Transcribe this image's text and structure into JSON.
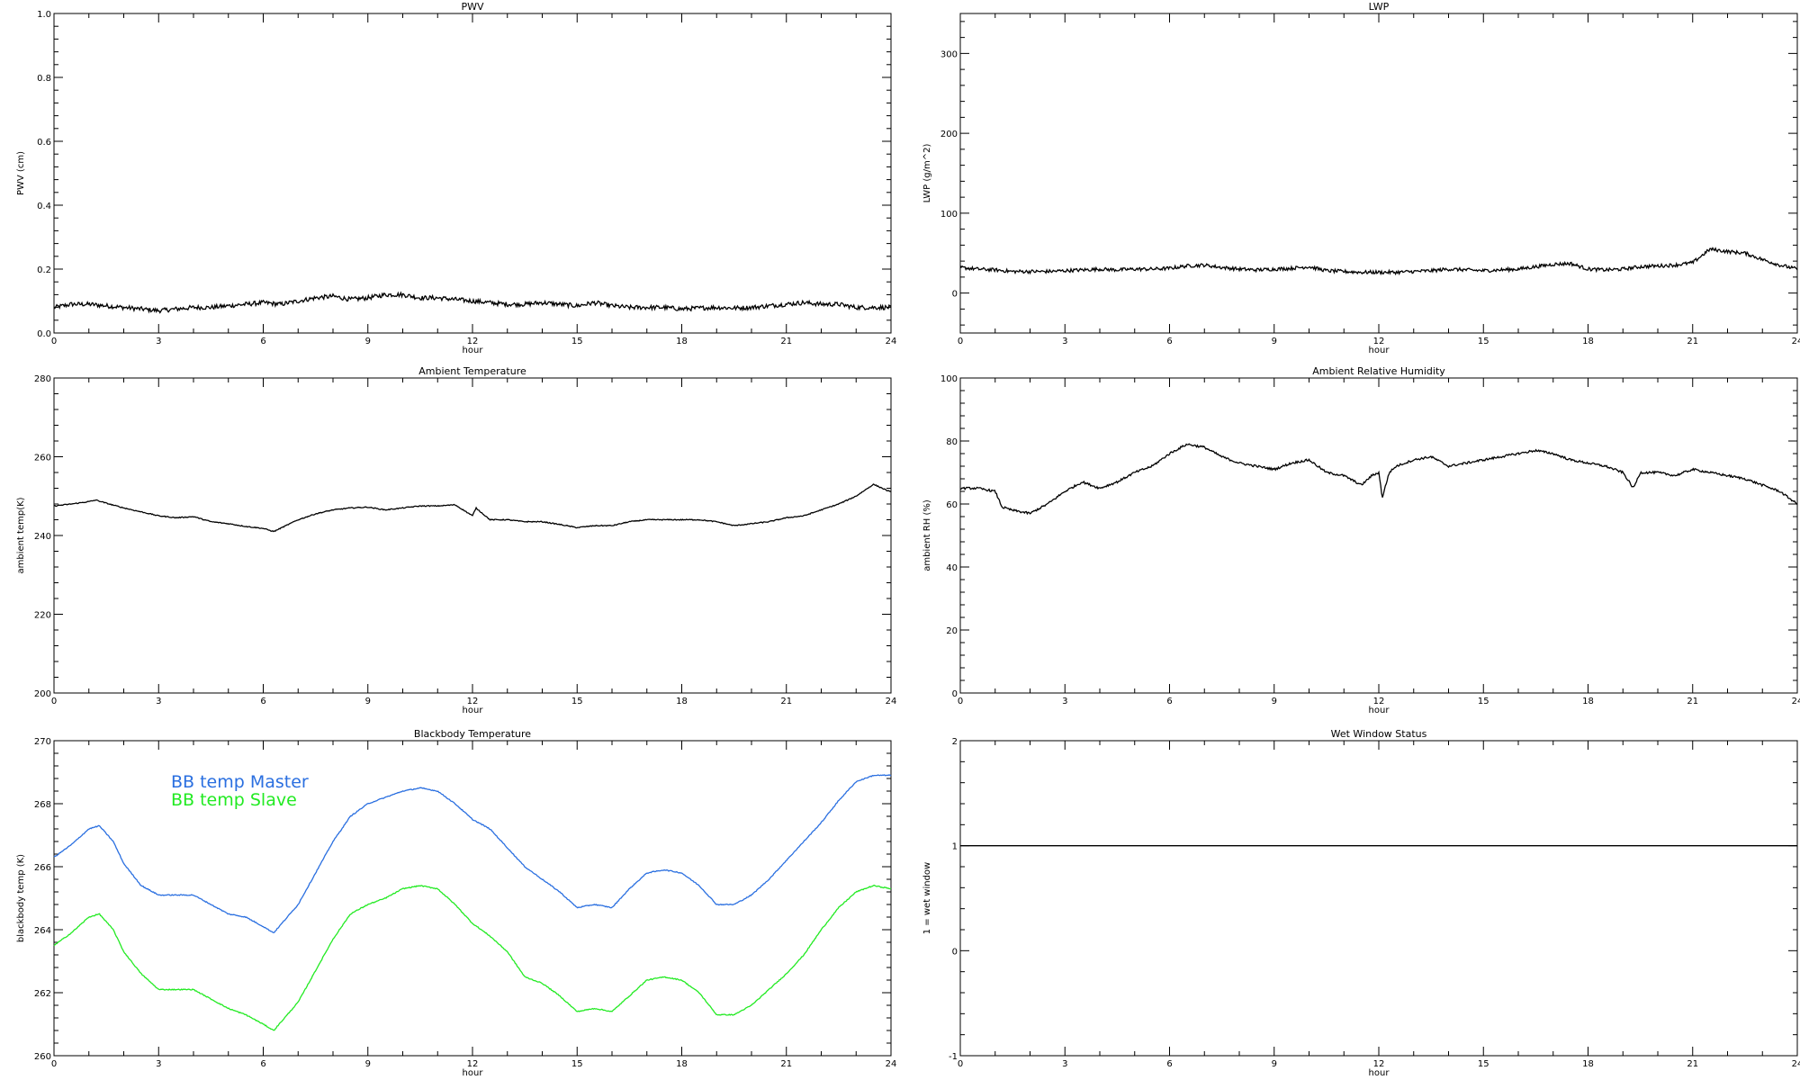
{
  "chart_data": [
    {
      "id": "pwv",
      "type": "line",
      "title": "PWV",
      "xlabel": "hour",
      "ylabel": "PWV (cm)",
      "xlim": [
        0,
        24
      ],
      "ylim": [
        0,
        1.0
      ],
      "xticks": [
        0,
        3,
        6,
        9,
        12,
        15,
        18,
        21,
        24
      ],
      "yticks": [
        0.0,
        0.2,
        0.4,
        0.6,
        0.8,
        1.0
      ],
      "ytick_labels": [
        "0.0",
        "0.2",
        "0.4",
        "0.6",
        "0.8",
        "1.0"
      ],
      "series": [
        {
          "color": "#000000",
          "noise": 0.007,
          "x": [
            0,
            0.5,
            1,
            1.5,
            2,
            2.5,
            3,
            3.5,
            4,
            4.5,
            5,
            5.5,
            6,
            6.5,
            7,
            7.5,
            8,
            8.5,
            9,
            9.5,
            10,
            10.5,
            11,
            11.5,
            12,
            12.5,
            13,
            13.5,
            14,
            14.5,
            15,
            15.5,
            16,
            16.5,
            17,
            17.5,
            18,
            18.5,
            19,
            19.5,
            20,
            20.5,
            21,
            21.5,
            22,
            22.5,
            23,
            23.5,
            24
          ],
          "y": [
            0.08,
            0.09,
            0.09,
            0.085,
            0.08,
            0.075,
            0.07,
            0.075,
            0.08,
            0.08,
            0.085,
            0.09,
            0.095,
            0.09,
            0.1,
            0.11,
            0.115,
            0.105,
            0.11,
            0.12,
            0.12,
            0.11,
            0.11,
            0.105,
            0.1,
            0.095,
            0.09,
            0.09,
            0.095,
            0.09,
            0.085,
            0.095,
            0.085,
            0.08,
            0.08,
            0.08,
            0.075,
            0.078,
            0.08,
            0.078,
            0.08,
            0.085,
            0.09,
            0.095,
            0.09,
            0.09,
            0.08,
            0.08,
            0.08
          ]
        }
      ]
    },
    {
      "id": "lwp",
      "type": "line",
      "title": "LWP",
      "xlabel": "hour",
      "ylabel": "LWP (g/m^2)",
      "xlim": [
        0,
        24
      ],
      "ylim": [
        -50,
        350
      ],
      "xticks": [
        0,
        3,
        6,
        9,
        12,
        15,
        18,
        21,
        24
      ],
      "yticks": [
        0,
        100,
        200,
        300
      ],
      "ytick_labels": [
        "0",
        "100",
        "200",
        "300"
      ],
      "series": [
        {
          "color": "#000000",
          "noise": 2.2,
          "x": [
            0,
            0.5,
            1,
            1.5,
            2,
            2.5,
            3,
            3.5,
            4,
            4.5,
            5,
            5.5,
            6,
            6.5,
            7,
            7.5,
            8,
            8.5,
            9,
            9.5,
            10,
            10.5,
            11,
            11.5,
            12,
            12.5,
            13,
            13.5,
            14,
            14.5,
            15,
            15.5,
            16,
            16.5,
            17,
            17.5,
            18,
            18.5,
            19,
            19.5,
            20,
            20.5,
            21,
            21.5,
            22,
            22.5,
            23,
            23.5,
            24
          ],
          "y": [
            32,
            30,
            29,
            27,
            27,
            27,
            28,
            29,
            30,
            29,
            30,
            30,
            31,
            34,
            35,
            32,
            30,
            29,
            30,
            31,
            33,
            28,
            27,
            26,
            26,
            26,
            27,
            28,
            30,
            29,
            28,
            29,
            30,
            33,
            36,
            37,
            30,
            29,
            30,
            33,
            34,
            35,
            38,
            55,
            52,
            50,
            42,
            35,
            30
          ]
        }
      ]
    },
    {
      "id": "ambient-temp",
      "type": "line",
      "title": "Ambient Temperature",
      "xlabel": "hour",
      "ylabel": "ambient temp(K)",
      "xlim": [
        0,
        24
      ],
      "ylim": [
        200,
        280
      ],
      "xticks": [
        0,
        3,
        6,
        9,
        12,
        15,
        18,
        21,
        24
      ],
      "yticks": [
        200,
        220,
        240,
        260,
        280
      ],
      "ytick_labels": [
        "200",
        "220",
        "240",
        "260",
        "280"
      ],
      "series": [
        {
          "color": "#000000",
          "noise": 0.12,
          "x": [
            0,
            0.5,
            1,
            1.2,
            1.5,
            2,
            2.5,
            3,
            3.5,
            4,
            4.5,
            5,
            5.5,
            6,
            6.3,
            7,
            7.5,
            8,
            8.5,
            9,
            9.5,
            10,
            10.5,
            11,
            11.5,
            12,
            12.1,
            12.5,
            13,
            13.5,
            14,
            14.5,
            15,
            15.5,
            16,
            16.5,
            17,
            17.5,
            18,
            18.5,
            19,
            19.5,
            20,
            20.5,
            21,
            21.5,
            22,
            22.5,
            23,
            23.5,
            24
          ],
          "y": [
            247.5,
            248,
            248.6,
            249,
            248.2,
            247,
            246,
            245,
            244.5,
            244.8,
            243.5,
            243,
            242.3,
            241.8,
            241,
            244,
            245.5,
            246.5,
            247,
            247.2,
            246.5,
            247,
            247.5,
            247.5,
            247.8,
            245,
            247,
            244,
            244,
            243.5,
            243.5,
            242.8,
            242,
            242.5,
            242.5,
            243.5,
            244,
            244,
            244,
            244,
            243.5,
            242.5,
            243,
            243.5,
            244.5,
            245,
            246.5,
            248,
            250,
            253,
            251
          ]
        }
      ]
    },
    {
      "id": "ambient-rh",
      "type": "line",
      "title": "Ambient Relative Humidity",
      "xlabel": "hour",
      "ylabel": "ambient RH (%)",
      "xlim": [
        0,
        24
      ],
      "ylim": [
        0,
        100
      ],
      "xticks": [
        0,
        3,
        6,
        9,
        12,
        15,
        18,
        21,
        24
      ],
      "yticks": [
        0,
        20,
        40,
        60,
        80,
        100
      ],
      "ytick_labels": [
        "0",
        "20",
        "40",
        "60",
        "80",
        "100"
      ],
      "series": [
        {
          "color": "#000000",
          "noise": 0.35,
          "x": [
            0,
            0.5,
            1,
            1.2,
            1.5,
            2,
            2.5,
            3,
            3.5,
            4,
            4.5,
            5,
            5.5,
            6,
            6.5,
            7,
            7.5,
            8,
            8.5,
            9,
            9.5,
            10,
            10.5,
            11,
            11.5,
            11.8,
            12,
            12.1,
            12.3,
            12.5,
            13,
            13.5,
            14,
            14.5,
            15,
            15.5,
            16,
            16.5,
            17,
            17.5,
            18,
            18.5,
            19,
            19.3,
            19.5,
            20,
            20.5,
            21,
            21.5,
            22,
            22.5,
            23,
            23.5,
            24
          ],
          "y": [
            65,
            65,
            64,
            59,
            58,
            57,
            60,
            64,
            67,
            65,
            67,
            70,
            72,
            76,
            79,
            78,
            75,
            73,
            72,
            71,
            73,
            74,
            70,
            69,
            66,
            69,
            70,
            62,
            70,
            72,
            74,
            75,
            72,
            73,
            74,
            75,
            76,
            77,
            76,
            74,
            73,
            72,
            70,
            65,
            70,
            70,
            69,
            71,
            70,
            69,
            68,
            66,
            64,
            60
          ]
        }
      ]
    },
    {
      "id": "blackbody-temp",
      "type": "line",
      "title": "Blackbody Temperature",
      "xlabel": "hour",
      "ylabel": "blackbody temp (K)",
      "xlim": [
        0,
        24
      ],
      "ylim": [
        260,
        270
      ],
      "xticks": [
        0,
        3,
        6,
        9,
        12,
        15,
        18,
        21,
        24
      ],
      "yticks": [
        260,
        262,
        264,
        266,
        268,
        270
      ],
      "ytick_labels": [
        "260",
        "262",
        "264",
        "266",
        "268",
        "270"
      ],
      "legend": [
        "BB temp Master",
        "BB temp Slave"
      ],
      "series": [
        {
          "name": "BB temp Master",
          "color": "#2a6fe0",
          "noise": 0.015,
          "x": [
            0,
            0.5,
            1,
            1.3,
            1.7,
            2,
            2.5,
            3,
            3.5,
            4,
            4.5,
            5,
            5.5,
            6,
            6.3,
            7,
            7.5,
            8,
            8.5,
            9,
            9.5,
            10,
            10.5,
            11,
            11.5,
            12,
            12.5,
            13,
            13.5,
            14,
            14.5,
            15,
            15.5,
            16,
            16.5,
            17,
            17.5,
            18,
            18.5,
            19,
            19.5,
            20,
            20.5,
            21,
            21.5,
            22,
            22.5,
            23,
            23.5,
            24
          ],
          "y": [
            266.3,
            266.7,
            267.2,
            267.3,
            266.8,
            266.1,
            265.4,
            265.1,
            265.1,
            265.1,
            264.8,
            264.5,
            264.4,
            264.1,
            263.9,
            264.8,
            265.8,
            266.8,
            267.6,
            268,
            268.2,
            268.4,
            268.5,
            268.4,
            268,
            267.5,
            267.2,
            266.6,
            266,
            265.6,
            265.2,
            264.7,
            264.8,
            264.7,
            265.3,
            265.8,
            265.9,
            265.8,
            265.4,
            264.8,
            264.8,
            265.1,
            265.6,
            266.2,
            266.8,
            267.4,
            268.1,
            268.7,
            268.9,
            268.9
          ]
        },
        {
          "name": "BB temp Slave",
          "color": "#22ea22",
          "noise": 0.015,
          "x": [
            0,
            0.5,
            1,
            1.3,
            1.7,
            2,
            2.5,
            3,
            3.5,
            4,
            4.5,
            5,
            5.5,
            6,
            6.3,
            7,
            7.5,
            8,
            8.5,
            9,
            9.5,
            10,
            10.5,
            11,
            11.5,
            12,
            12.5,
            13,
            13.5,
            14,
            14.5,
            15,
            15.5,
            16,
            16.5,
            17,
            17.5,
            18,
            18.5,
            19,
            19.5,
            20,
            20.5,
            21,
            21.5,
            22,
            22.5,
            23,
            23.5,
            24
          ],
          "y": [
            263.5,
            263.9,
            264.4,
            264.5,
            264,
            263.3,
            262.6,
            262.1,
            262.1,
            262.1,
            261.8,
            261.5,
            261.3,
            261,
            260.8,
            261.7,
            262.7,
            263.7,
            264.5,
            264.8,
            265,
            265.3,
            265.4,
            265.3,
            264.8,
            264.2,
            263.8,
            263.3,
            262.5,
            262.3,
            261.9,
            261.4,
            261.5,
            261.4,
            261.9,
            262.4,
            262.5,
            262.4,
            262,
            261.3,
            261.3,
            261.6,
            262.1,
            262.6,
            263.2,
            264,
            264.7,
            265.2,
            265.4,
            265.3
          ]
        }
      ]
    },
    {
      "id": "wet-window",
      "type": "line",
      "title": "Wet Window Status",
      "xlabel": "hour",
      "ylabel": "1 = wet window",
      "xlim": [
        0,
        24
      ],
      "ylim": [
        -1,
        2
      ],
      "xticks": [
        0,
        3,
        6,
        9,
        12,
        15,
        18,
        21,
        24
      ],
      "yticks": [
        -1,
        0,
        1,
        2
      ],
      "ytick_labels": [
        "-1",
        "0",
        "1",
        "2"
      ],
      "series": [
        {
          "color": "#000000",
          "noise": 0,
          "x": [
            0,
            24
          ],
          "y": [
            1,
            1
          ]
        }
      ]
    }
  ]
}
